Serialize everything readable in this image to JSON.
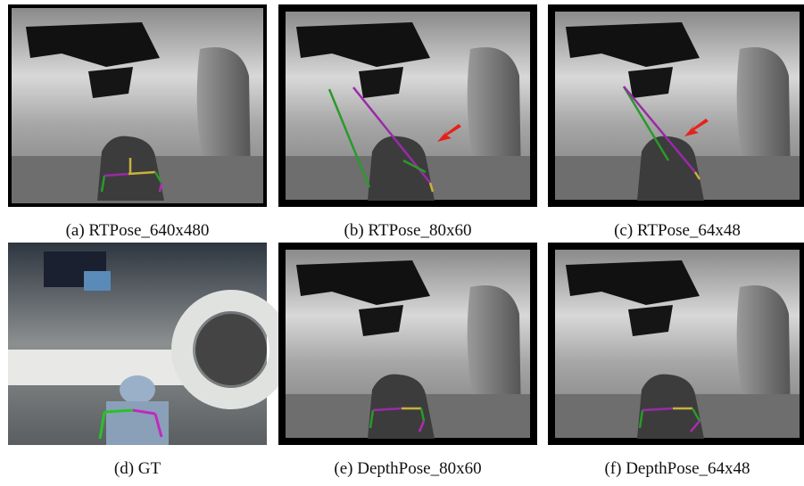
{
  "panels": [
    {
      "caption": "(a) RTPose_640x480"
    },
    {
      "caption": "(b) RTPose_80x60"
    },
    {
      "caption": "(c) RTPose_64x48"
    },
    {
      "caption": "(d) GT"
    },
    {
      "caption": "(e) DepthPose_80x60"
    },
    {
      "caption": "(f) DepthPose_64x48"
    }
  ]
}
